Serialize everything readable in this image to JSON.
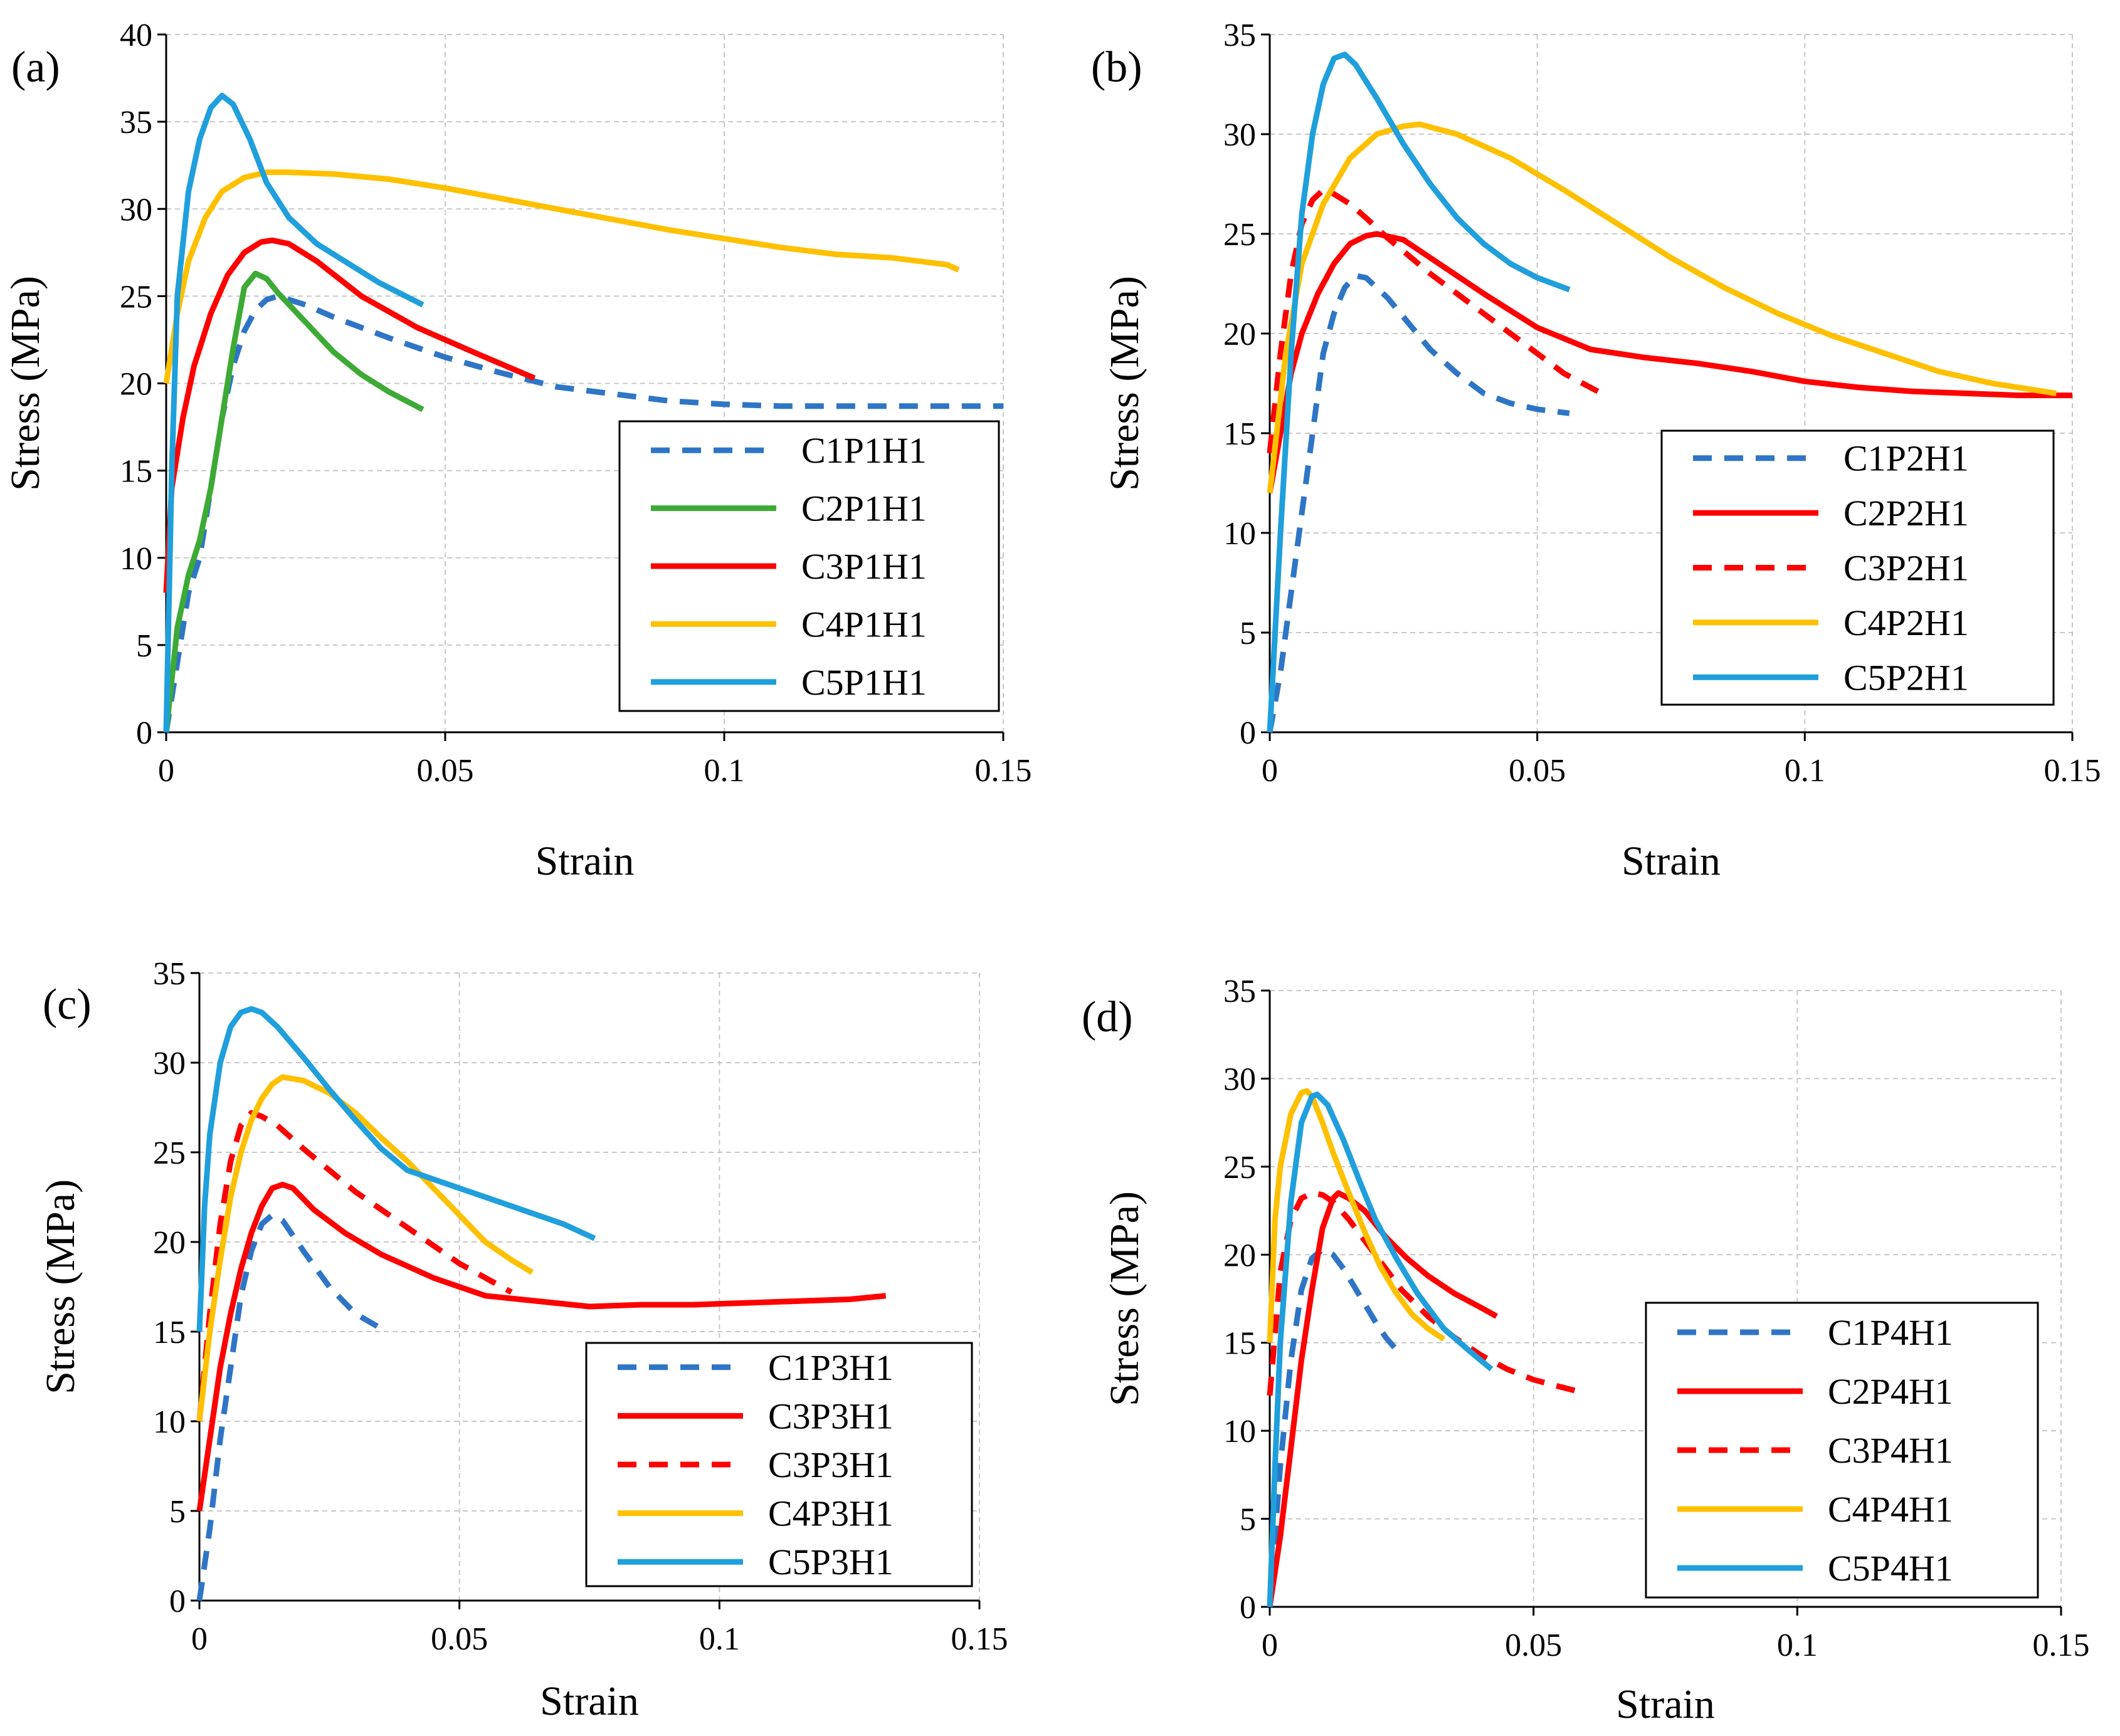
{
  "chart_data": [
    {
      "type": "line",
      "panel_label": "(a)",
      "xlabel": "Strain",
      "ylabel": "Stress (MPa)",
      "xlim": [
        0,
        0.15
      ],
      "ylim": [
        0,
        40
      ],
      "xticks": [
        "0",
        "0.05",
        "0.1",
        "0.15"
      ],
      "yticks": [
        "0",
        "5",
        "10",
        "15",
        "20",
        "25",
        "30",
        "35",
        "40"
      ],
      "grid": true,
      "legend_position": "bottom-right",
      "series": [
        {
          "name": "C1P1H1",
          "color": "#2E75C6",
          "dash": true,
          "x": [
            0,
            0.002,
            0.004,
            0.006,
            0.008,
            0.01,
            0.012,
            0.014,
            0.016,
            0.018,
            0.02,
            0.025,
            0.03,
            0.04,
            0.05,
            0.06,
            0.07,
            0.08,
            0.09,
            0.1,
            0.11,
            0.12,
            0.13,
            0.14,
            0.15
          ],
          "y": [
            0,
            4,
            8,
            10,
            14,
            18,
            21,
            23,
            24.2,
            24.8,
            25,
            24.5,
            23.8,
            22.6,
            21.5,
            20.6,
            19.8,
            19.4,
            19.0,
            18.8,
            18.7,
            18.7,
            18.7,
            18.7,
            18.7
          ]
        },
        {
          "name": "C2P1H1",
          "color": "#3DAA35",
          "dash": false,
          "x": [
            0,
            0.002,
            0.004,
            0.006,
            0.008,
            0.01,
            0.012,
            0.014,
            0.016,
            0.018,
            0.02,
            0.025,
            0.03,
            0.035,
            0.04,
            0.046
          ],
          "y": [
            0,
            6,
            9,
            11,
            14,
            18,
            22,
            25.5,
            26.3,
            26.0,
            25.2,
            23.5,
            21.8,
            20.5,
            19.5,
            18.5
          ]
        },
        {
          "name": "C3P1H1",
          "color": "#FF0000",
          "dash": false,
          "x": [
            0,
            0.001,
            0.003,
            0.005,
            0.008,
            0.011,
            0.014,
            0.017,
            0.019,
            0.022,
            0.027,
            0.035,
            0.045,
            0.055,
            0.066
          ],
          "y": [
            8,
            14,
            18,
            21,
            24,
            26.2,
            27.5,
            28.1,
            28.2,
            28.0,
            27.0,
            25.0,
            23.2,
            21.8,
            20.3
          ]
        },
        {
          "name": "C4P1H1",
          "color": "#FFC000",
          "dash": false,
          "x": [
            0,
            0.002,
            0.004,
            0.007,
            0.01,
            0.014,
            0.018,
            0.022,
            0.03,
            0.04,
            0.05,
            0.06,
            0.07,
            0.08,
            0.09,
            0.1,
            0.11,
            0.12,
            0.13,
            0.14,
            0.142
          ],
          "y": [
            20,
            24,
            27,
            29.5,
            31,
            31.8,
            32.1,
            32.1,
            32.0,
            31.7,
            31.2,
            30.6,
            30.0,
            29.4,
            28.8,
            28.3,
            27.8,
            27.4,
            27.2,
            26.8,
            26.5
          ]
        },
        {
          "name": "C5P1H1",
          "color": "#1F9FDB",
          "dash": false,
          "x": [
            0,
            0.001,
            0.002,
            0.004,
            0.006,
            0.008,
            0.01,
            0.012,
            0.015,
            0.018,
            0.022,
            0.027,
            0.032,
            0.038,
            0.046
          ],
          "y": [
            0,
            15,
            25,
            31,
            34,
            35.8,
            36.5,
            36.0,
            34.0,
            31.5,
            29.5,
            28.0,
            27.0,
            25.8,
            24.5
          ]
        }
      ]
    },
    {
      "type": "line",
      "panel_label": "(b)",
      "xlabel": "Strain",
      "ylabel": "Stress (MPa)",
      "xlim": [
        0,
        0.15
      ],
      "ylim": [
        0,
        35
      ],
      "xticks": [
        "0",
        "0.05",
        "0.1",
        "0.15"
      ],
      "yticks": [
        "0",
        "5",
        "10",
        "15",
        "20",
        "25",
        "30",
        "35"
      ],
      "grid": true,
      "legend_position": "bottom-right",
      "series": [
        {
          "name": "C1P2H1",
          "color": "#2E75C6",
          "dash": true,
          "x": [
            0,
            0.002,
            0.004,
            0.006,
            0.008,
            0.01,
            0.012,
            0.014,
            0.016,
            0.018,
            0.022,
            0.026,
            0.03,
            0.035,
            0.04,
            0.045,
            0.05,
            0.056
          ],
          "y": [
            0,
            3,
            7,
            11,
            15,
            19,
            21,
            22.3,
            22.9,
            22.8,
            21.8,
            20.5,
            19.2,
            18.0,
            17.0,
            16.5,
            16.2,
            16.0
          ]
        },
        {
          "name": "C2P2H1",
          "color": "#FF0000",
          "dash": false,
          "x": [
            0,
            0.002,
            0.004,
            0.006,
            0.009,
            0.012,
            0.015,
            0.018,
            0.02,
            0.025,
            0.03,
            0.04,
            0.05,
            0.06,
            0.07,
            0.08,
            0.09,
            0.1,
            0.11,
            0.12,
            0.13,
            0.14,
            0.15
          ],
          "y": [
            12,
            15,
            18,
            20,
            22,
            23.5,
            24.5,
            24.9,
            25,
            24.7,
            23.8,
            22.0,
            20.3,
            19.2,
            18.8,
            18.5,
            18.1,
            17.6,
            17.3,
            17.1,
            17.0,
            16.9,
            16.9
          ]
        },
        {
          "name": "C3P2H1",
          "color": "#FF0000",
          "dash": true,
          "x": [
            0,
            0.002,
            0.004,
            0.006,
            0.008,
            0.01,
            0.012,
            0.015,
            0.018,
            0.022,
            0.026,
            0.03,
            0.035,
            0.04,
            0.045,
            0.05,
            0.055,
            0.062
          ],
          "y": [
            14,
            19,
            23,
            25.5,
            26.7,
            27.2,
            27.0,
            26.5,
            25.8,
            24.8,
            23.9,
            23.0,
            22.0,
            21.0,
            20.0,
            19.0,
            18.0,
            17.0
          ]
        },
        {
          "name": "C4P2H1",
          "color": "#FFC000",
          "dash": false,
          "x": [
            0,
            0.003,
            0.006,
            0.01,
            0.015,
            0.02,
            0.025,
            0.028,
            0.035,
            0.045,
            0.055,
            0.065,
            0.075,
            0.085,
            0.095,
            0.105,
            0.115,
            0.125,
            0.135,
            0.147
          ],
          "y": [
            12,
            19,
            23.5,
            26.5,
            28.8,
            30.0,
            30.4,
            30.5,
            30.0,
            28.8,
            27.2,
            25.5,
            23.8,
            22.3,
            21.0,
            19.9,
            19.0,
            18.1,
            17.5,
            17.0
          ]
        },
        {
          "name": "C5P2H1",
          "color": "#1F9FDB",
          "dash": false,
          "x": [
            0,
            0.002,
            0.004,
            0.006,
            0.008,
            0.01,
            0.012,
            0.014,
            0.016,
            0.02,
            0.025,
            0.03,
            0.035,
            0.04,
            0.045,
            0.05,
            0.056
          ],
          "y": [
            0,
            10,
            19,
            26,
            30,
            32.5,
            33.8,
            34.0,
            33.5,
            31.8,
            29.5,
            27.5,
            25.8,
            24.5,
            23.5,
            22.8,
            22.2
          ]
        }
      ]
    },
    {
      "type": "line",
      "panel_label": "(c)",
      "xlabel": "Strain",
      "ylabel": "Stress (MPa)",
      "xlim": [
        0,
        0.15
      ],
      "ylim": [
        0,
        35
      ],
      "xticks": [
        "0",
        "0.05",
        "0.1",
        "0.15"
      ],
      "yticks": [
        "0",
        "5",
        "10",
        "15",
        "20",
        "25",
        "30",
        "35"
      ],
      "grid": true,
      "legend_position": "bottom-right",
      "series": [
        {
          "name": "C1P3H1",
          "color": "#2E75C6",
          "dash": true,
          "x": [
            0,
            0.002,
            0.004,
            0.006,
            0.008,
            0.01,
            0.012,
            0.014,
            0.016,
            0.02,
            0.025,
            0.03,
            0.036
          ],
          "y": [
            0,
            4,
            9,
            13,
            17,
            19.5,
            21,
            21.5,
            21.2,
            19.5,
            17.5,
            16.0,
            15.0
          ]
        },
        {
          "name": "C3P3H1",
          "color": "#FF0000",
          "dash": false,
          "x": [
            0,
            0.002,
            0.004,
            0.006,
            0.008,
            0.01,
            0.012,
            0.014,
            0.016,
            0.018,
            0.022,
            0.028,
            0.035,
            0.045,
            0.055,
            0.065,
            0.075,
            0.085,
            0.095,
            0.105,
            0.115,
            0.125,
            0.132
          ],
          "y": [
            5,
            9,
            13,
            16,
            18.5,
            20.5,
            22,
            23,
            23.2,
            23.0,
            21.8,
            20.5,
            19.3,
            18.0,
            17.0,
            16.7,
            16.4,
            16.5,
            16.5,
            16.6,
            16.7,
            16.8,
            17.0
          ]
        },
        {
          "name": "C3P3H1",
          "color": "#FF0000",
          "dash": true,
          "x": [
            0,
            0.002,
            0.004,
            0.006,
            0.008,
            0.01,
            0.012,
            0.015,
            0.02,
            0.025,
            0.03,
            0.035,
            0.04,
            0.045,
            0.05,
            0.055,
            0.06
          ],
          "y": [
            10,
            16,
            21,
            24.5,
            26.5,
            27.2,
            27.0,
            26.5,
            25.2,
            24.0,
            22.8,
            21.8,
            20.8,
            19.8,
            18.8,
            18.0,
            17.2
          ]
        },
        {
          "name": "C4P3H1",
          "color": "#FFC000",
          "dash": false,
          "x": [
            0,
            0.002,
            0.004,
            0.006,
            0.008,
            0.01,
            0.012,
            0.014,
            0.016,
            0.02,
            0.025,
            0.03,
            0.035,
            0.04,
            0.045,
            0.05,
            0.055,
            0.06,
            0.064
          ],
          "y": [
            10,
            15,
            19,
            22.5,
            25,
            26.8,
            28,
            28.8,
            29.2,
            29.0,
            28.3,
            27.2,
            25.8,
            24.5,
            23.0,
            21.5,
            20.0,
            19.0,
            18.3
          ]
        },
        {
          "name": "C5P3H1",
          "color": "#1F9FDB",
          "dash": false,
          "x": [
            0,
            0.001,
            0.002,
            0.004,
            0.006,
            0.008,
            0.01,
            0.012,
            0.015,
            0.02,
            0.025,
            0.03,
            0.035,
            0.04,
            0.05,
            0.06,
            0.07,
            0.076
          ],
          "y": [
            15,
            22,
            26,
            30,
            32,
            32.8,
            33.0,
            32.8,
            32.0,
            30.3,
            28.5,
            26.8,
            25.2,
            24.0,
            23.0,
            22.0,
            21.0,
            20.2
          ]
        }
      ]
    },
    {
      "type": "line",
      "panel_label": "(d)",
      "xlabel": "Strain",
      "ylabel": "Stress (MPa)",
      "xlim": [
        0,
        0.15
      ],
      "ylim": [
        0,
        35
      ],
      "xticks": [
        "0",
        "0.05",
        "0.1",
        "0.15"
      ],
      "yticks": [
        "0",
        "5",
        "10",
        "15",
        "20",
        "25",
        "30",
        "35"
      ],
      "grid": true,
      "legend_position": "bottom-right",
      "series": [
        {
          "name": "C1P4H1",
          "color": "#2E75C6",
          "dash": true,
          "x": [
            0,
            0.002,
            0.004,
            0.006,
            0.008,
            0.01,
            0.012,
            0.014,
            0.016,
            0.018,
            0.02,
            0.022,
            0.024,
            0.025
          ],
          "y": [
            0,
            8,
            14,
            18,
            19.8,
            20.3,
            20.0,
            19.2,
            18.2,
            17.2,
            16.2,
            15.3,
            14.6,
            14.2
          ]
        },
        {
          "name": "C2P4H1",
          "color": "#FF0000",
          "dash": false,
          "x": [
            0,
            0.002,
            0.004,
            0.006,
            0.008,
            0.01,
            0.012,
            0.013,
            0.015,
            0.018,
            0.022,
            0.026,
            0.03,
            0.035,
            0.04,
            0.043
          ],
          "y": [
            0,
            4,
            9,
            14,
            18,
            21.5,
            23.2,
            23.5,
            23.2,
            22.5,
            21.0,
            19.8,
            18.8,
            17.8,
            17.0,
            16.5
          ]
        },
        {
          "name": "C3P4H1",
          "color": "#FF0000",
          "dash": true,
          "x": [
            0,
            0.002,
            0.004,
            0.006,
            0.008,
            0.01,
            0.012,
            0.015,
            0.02,
            0.025,
            0.03,
            0.035,
            0.04,
            0.045,
            0.05,
            0.055,
            0.059
          ],
          "y": [
            12,
            19,
            22,
            23.2,
            23.5,
            23.4,
            23.0,
            22.0,
            20.0,
            18.0,
            16.5,
            15.3,
            14.3,
            13.5,
            12.9,
            12.5,
            12.2
          ]
        },
        {
          "name": "C4P4H1",
          "color": "#FFC000",
          "dash": false,
          "x": [
            0,
            0.001,
            0.002,
            0.004,
            0.006,
            0.007,
            0.008,
            0.01,
            0.012,
            0.015,
            0.018,
            0.021,
            0.024,
            0.027,
            0.03,
            0.033
          ],
          "y": [
            15,
            22,
            25,
            28,
            29.2,
            29.3,
            29.0,
            27.5,
            25.8,
            23.5,
            21.3,
            19.3,
            17.8,
            16.6,
            15.8,
            15.2
          ]
        },
        {
          "name": "C5P4H1",
          "color": "#1F9FDB",
          "dash": false,
          "x": [
            0,
            0.001,
            0.002,
            0.004,
            0.006,
            0.008,
            0.009,
            0.011,
            0.014,
            0.017,
            0.02,
            0.024,
            0.028,
            0.033,
            0.038,
            0.042
          ],
          "y": [
            0,
            8,
            15,
            23,
            27.5,
            29.0,
            29.1,
            28.5,
            26.5,
            24.2,
            22.0,
            19.8,
            17.8,
            15.8,
            14.5,
            13.5
          ]
        }
      ]
    }
  ]
}
